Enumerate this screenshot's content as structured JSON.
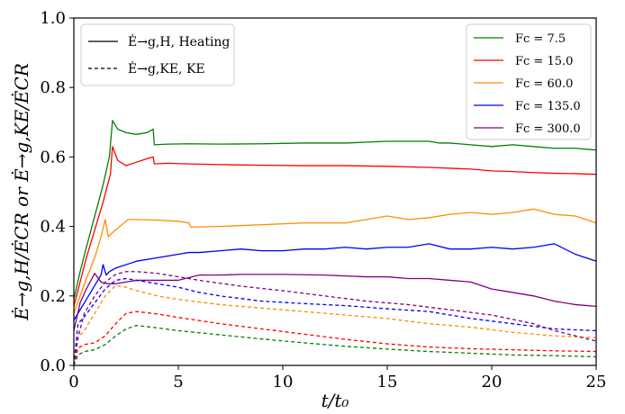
{
  "chart_data": {
    "type": "line",
    "title": "",
    "xlabel": "t/t₀",
    "ylabel": "Ė→g,H/ĖCR  or  Ė→g,KE/ĖCR",
    "xlim": [
      0,
      25
    ],
    "ylim": [
      0,
      1.0
    ],
    "xticks": [
      0,
      5,
      10,
      15,
      20,
      25
    ],
    "yticks": [
      0.0,
      0.2,
      0.4,
      0.6,
      0.8,
      1.0
    ],
    "xtick_labels": [
      "0",
      "5",
      "10",
      "15",
      "20",
      "25"
    ],
    "ytick_labels": [
      "0.0",
      "0.2",
      "0.4",
      "0.6",
      "0.8",
      "1.0"
    ],
    "grid": false,
    "style_legend": {
      "placement": "top-left",
      "entries": [
        {
          "label": "Ė→g,H, Heating",
          "linestyle": "solid"
        },
        {
          "label": "Ė→g,KE, KE",
          "linestyle": "dashed"
        }
      ]
    },
    "color_legend": {
      "placement": "top-right",
      "entries": [
        {
          "label": "Fc = 7.5",
          "color": "#008000"
        },
        {
          "label": "Fc = 15.0",
          "color": "#ff0000"
        },
        {
          "label": "Fc = 60.0",
          "color": "#ff8c00"
        },
        {
          "label": "Fc = 135.0",
          "color": "#0000ff"
        },
        {
          "label": "Fc = 300.0",
          "color": "#800080"
        }
      ]
    },
    "series": [
      {
        "name": "Fc = 7.5 heating",
        "color": "#008000",
        "linestyle": "solid",
        "x": [
          0,
          0.3,
          0.6,
          1.0,
          1.4,
          1.7,
          1.85,
          2.1,
          2.5,
          3.0,
          3.5,
          3.8,
          3.85,
          4.5,
          5.5,
          7,
          9,
          11,
          13,
          15,
          16,
          17,
          17.5,
          18,
          19,
          20,
          21,
          22,
          23,
          24,
          25
        ],
        "y": [
          0.19,
          0.27,
          0.34,
          0.43,
          0.52,
          0.6,
          0.705,
          0.68,
          0.67,
          0.665,
          0.67,
          0.68,
          0.635,
          0.637,
          0.638,
          0.637,
          0.638,
          0.64,
          0.64,
          0.645,
          0.645,
          0.645,
          0.64,
          0.64,
          0.635,
          0.63,
          0.635,
          0.63,
          0.625,
          0.625,
          0.62
        ]
      },
      {
        "name": "Fc = 15.0 heating",
        "color": "#ff0000",
        "linestyle": "solid",
        "x": [
          0,
          0.3,
          0.6,
          1.0,
          1.4,
          1.75,
          1.85,
          2.1,
          2.5,
          3.0,
          3.5,
          3.8,
          3.85,
          4.5,
          5.5,
          7,
          9,
          11,
          13,
          15,
          17,
          19,
          20,
          21,
          22,
          23,
          24,
          25
        ],
        "y": [
          0.17,
          0.24,
          0.31,
          0.39,
          0.47,
          0.55,
          0.63,
          0.59,
          0.575,
          0.585,
          0.595,
          0.6,
          0.58,
          0.582,
          0.58,
          0.578,
          0.576,
          0.575,
          0.575,
          0.573,
          0.57,
          0.565,
          0.56,
          0.558,
          0.555,
          0.553,
          0.552,
          0.55
        ]
      },
      {
        "name": "Fc = 60.0 heating",
        "color": "#ff8c00",
        "linestyle": "solid",
        "x": [
          0,
          0.3,
          0.6,
          1.0,
          1.3,
          1.5,
          1.65,
          1.8,
          2.2,
          2.6,
          3.0,
          4.0,
          5.0,
          5.5,
          5.6,
          7,
          9,
          11,
          13,
          14,
          15,
          16,
          17,
          18,
          19,
          20,
          21,
          22,
          23,
          24,
          25
        ],
        "y": [
          0.15,
          0.2,
          0.25,
          0.31,
          0.37,
          0.42,
          0.37,
          0.38,
          0.4,
          0.42,
          0.42,
          0.418,
          0.415,
          0.41,
          0.398,
          0.4,
          0.405,
          0.41,
          0.41,
          0.42,
          0.43,
          0.42,
          0.425,
          0.435,
          0.44,
          0.435,
          0.44,
          0.45,
          0.435,
          0.43,
          0.41
        ]
      },
      {
        "name": "Fc = 135.0 heating",
        "color": "#0000ff",
        "linestyle": "solid",
        "x": [
          0,
          0.3,
          0.6,
          1.0,
          1.3,
          1.4,
          1.55,
          1.7,
          2.0,
          2.5,
          3.0,
          4.0,
          5.0,
          5.5,
          6,
          7,
          8,
          9,
          10,
          11,
          12,
          13,
          14,
          15,
          16,
          17,
          18,
          19,
          20,
          21,
          22,
          23,
          24,
          25
        ],
        "y": [
          0.13,
          0.16,
          0.19,
          0.23,
          0.26,
          0.29,
          0.26,
          0.27,
          0.28,
          0.29,
          0.3,
          0.31,
          0.32,
          0.325,
          0.325,
          0.33,
          0.335,
          0.33,
          0.33,
          0.335,
          0.335,
          0.34,
          0.335,
          0.34,
          0.34,
          0.35,
          0.335,
          0.335,
          0.34,
          0.335,
          0.34,
          0.35,
          0.32,
          0.3
        ]
      },
      {
        "name": "Fc = 300.0 heating",
        "color": "#800080",
        "linestyle": "solid",
        "x": [
          0,
          0.3,
          0.6,
          1.0,
          1.3,
          1.6,
          2.0,
          2.5,
          3.0,
          4.0,
          5.0,
          6.0,
          7,
          8,
          10,
          12,
          14,
          15,
          16,
          17,
          18,
          19,
          20,
          21,
          22,
          23,
          24,
          25
        ],
        "y": [
          0.1,
          0.18,
          0.22,
          0.265,
          0.24,
          0.235,
          0.235,
          0.24,
          0.245,
          0.245,
          0.245,
          0.26,
          0.26,
          0.262,
          0.262,
          0.26,
          0.255,
          0.255,
          0.25,
          0.25,
          0.245,
          0.24,
          0.22,
          0.21,
          0.2,
          0.185,
          0.175,
          0.17
        ]
      },
      {
        "name": "Fc = 7.5 KE",
        "color": "#008000",
        "linestyle": "dashed",
        "x": [
          0,
          0.2,
          0.5,
          1.0,
          1.5,
          2.0,
          2.5,
          3.0,
          4.0,
          5,
          7,
          9,
          11,
          13,
          15,
          17,
          19,
          21,
          23,
          25
        ],
        "y": [
          0.0,
          0.03,
          0.04,
          0.045,
          0.06,
          0.085,
          0.105,
          0.115,
          0.108,
          0.1,
          0.088,
          0.076,
          0.065,
          0.055,
          0.047,
          0.04,
          0.035,
          0.03,
          0.028,
          0.025
        ]
      },
      {
        "name": "Fc = 15.0 KE",
        "color": "#ff0000",
        "linestyle": "dashed",
        "x": [
          0,
          0.2,
          0.5,
          1.0,
          1.5,
          2.0,
          2.5,
          3.0,
          4.0,
          5,
          7,
          9,
          11,
          13,
          15,
          17,
          19,
          21,
          23,
          25
        ],
        "y": [
          0.0,
          0.05,
          0.06,
          0.065,
          0.085,
          0.12,
          0.15,
          0.155,
          0.148,
          0.138,
          0.12,
          0.105,
          0.09,
          0.075,
          0.062,
          0.053,
          0.048,
          0.045,
          0.042,
          0.04
        ]
      },
      {
        "name": "Fc = 60.0 KE",
        "color": "#ff8c00",
        "linestyle": "dashed",
        "x": [
          0,
          0.2,
          0.5,
          1.0,
          1.5,
          2.0,
          2.5,
          3.0,
          4.0,
          5,
          7,
          9,
          11,
          13,
          15,
          17,
          19,
          21,
          23,
          25
        ],
        "y": [
          0.0,
          0.08,
          0.1,
          0.15,
          0.2,
          0.23,
          0.225,
          0.215,
          0.2,
          0.19,
          0.175,
          0.165,
          0.155,
          0.145,
          0.135,
          0.12,
          0.11,
          0.095,
          0.085,
          0.08
        ]
      },
      {
        "name": "Fc = 135.0 KE",
        "color": "#0000ff",
        "linestyle": "dashed",
        "x": [
          0,
          0.2,
          0.5,
          1.0,
          1.5,
          2.0,
          2.5,
          3.0,
          4.0,
          5.0,
          6.0,
          7,
          9,
          11,
          13,
          15,
          17,
          19,
          21,
          23,
          25
        ],
        "y": [
          0.0,
          0.12,
          0.14,
          0.18,
          0.22,
          0.245,
          0.25,
          0.245,
          0.235,
          0.225,
          0.21,
          0.2,
          0.185,
          0.178,
          0.172,
          0.163,
          0.155,
          0.135,
          0.12,
          0.105,
          0.1
        ]
      },
      {
        "name": "Fc = 300.0 KE",
        "color": "#800080",
        "linestyle": "dashed",
        "x": [
          0,
          0.2,
          0.5,
          1.0,
          1.5,
          2.0,
          2.5,
          3.0,
          4.0,
          5,
          6,
          8,
          10,
          12,
          14,
          16,
          18,
          20,
          22,
          23,
          24,
          25
        ],
        "y": [
          0.0,
          0.08,
          0.15,
          0.2,
          0.24,
          0.262,
          0.27,
          0.27,
          0.265,
          0.255,
          0.245,
          0.228,
          0.215,
          0.2,
          0.185,
          0.175,
          0.16,
          0.145,
          0.12,
          0.1,
          0.085,
          0.07
        ]
      }
    ]
  }
}
